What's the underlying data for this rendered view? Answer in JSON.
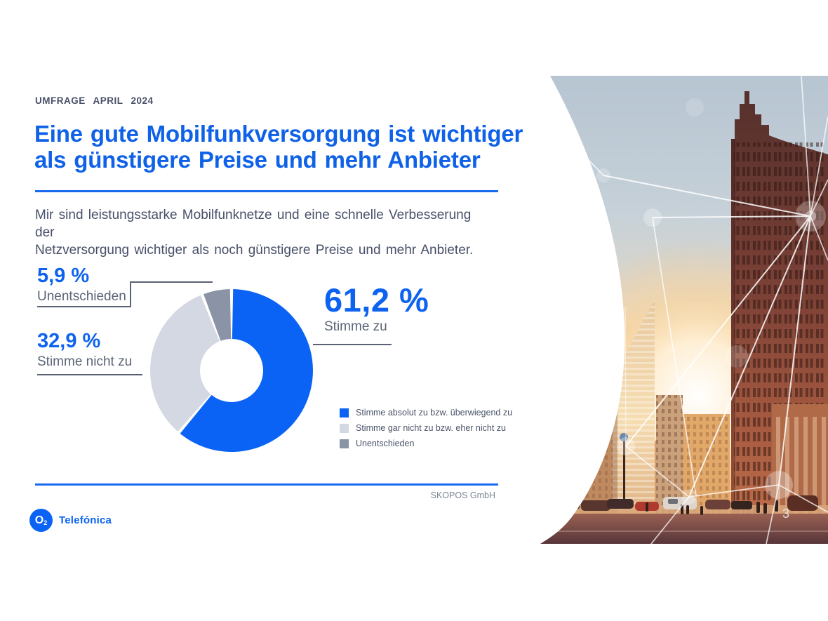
{
  "slide": {
    "kicker": "UMFRAGE APRIL 2024",
    "title_line1": "Eine gute Mobilfunkversorgung ist wichtiger",
    "title_line2": "als günstigere Preise und mehr Anbieter",
    "intro_line1": "Mir sind leistungsstarke Mobilfunknetze und eine schnelle Verbesserung der",
    "intro_line2": "Netzversorgung wichtiger als noch günstigere Preise und mehr Anbieter.",
    "source": "SKOPOS GmbH",
    "page_number": "3",
    "logo": {
      "symbol": "O",
      "symbol_sub": "2",
      "brand": "Telefónica"
    }
  },
  "colors": {
    "accent_blue": "#0d63f0",
    "rule_blue": "#1a6af0",
    "text_dark": "#474f68",
    "text_gray": "#5a6476",
    "source_gray": "#7d8694",
    "leader_gray": "#596273"
  },
  "chart_data": {
    "type": "pie",
    "subtype": "donut",
    "start_angle_deg_from_top": 0,
    "direction": "clockwise",
    "donut_hole_ratio": 0.39,
    "legend_position": "bottom-right",
    "segments": [
      {
        "label": "Stimme absolut zu bzw. überwiegend zu",
        "value": 61.2,
        "color": "#0a63f5",
        "callout_value": "61,2 %",
        "callout_label": "Stimme zu"
      },
      {
        "label": "Stimme gar nicht zu bzw. eher nicht zu",
        "value": 32.9,
        "color": "#d4d8e2",
        "callout_value": "32,9 %",
        "callout_label": "Stimme nicht zu"
      },
      {
        "label": "Unentschieden",
        "value": 5.9,
        "color": "#8b93a6",
        "callout_value": "5,9 %",
        "callout_label": "Unentschieden"
      }
    ]
  }
}
